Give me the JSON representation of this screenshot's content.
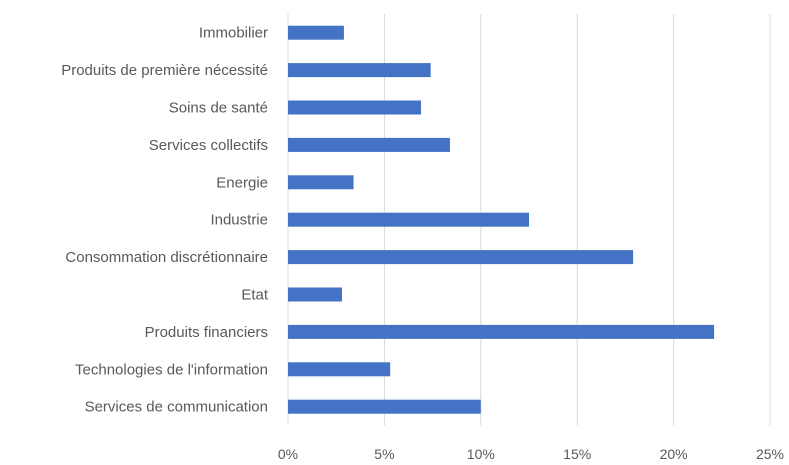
{
  "chart_data": {
    "type": "bar",
    "orientation": "horizontal",
    "categories": [
      "Immobilier",
      "Produits de première nécessité",
      "Soins de santé",
      "Services collectifs",
      "Energie",
      "Industrie",
      "Consommation discrétionnaire",
      "Etat",
      "Produits financiers",
      "Technologies de l'information",
      "Services de communication"
    ],
    "values": [
      2.9,
      7.4,
      6.9,
      8.4,
      3.4,
      12.5,
      17.9,
      2.8,
      22.1,
      5.3,
      10.0
    ],
    "xlim": [
      0,
      25
    ],
    "x_ticks": [
      0,
      5,
      10,
      15,
      20,
      25
    ],
    "x_tick_labels": [
      "0%",
      "5%",
      "10%",
      "15%",
      "20%",
      "25%"
    ],
    "unit": "%",
    "title": "",
    "xlabel": "",
    "ylabel": "",
    "grid": "vertical",
    "legend": "none",
    "bar_color": "#4472c4"
  }
}
